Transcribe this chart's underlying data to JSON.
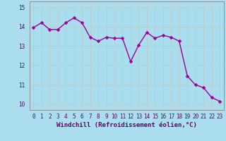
{
  "x": [
    0,
    1,
    2,
    3,
    4,
    5,
    6,
    7,
    8,
    9,
    10,
    11,
    12,
    13,
    14,
    15,
    16,
    17,
    18,
    19,
    20,
    21,
    22,
    23
  ],
  "y": [
    13.95,
    14.2,
    13.85,
    13.85,
    14.2,
    14.45,
    14.2,
    13.45,
    13.25,
    13.45,
    13.4,
    13.4,
    12.2,
    13.05,
    13.7,
    13.4,
    13.55,
    13.45,
    13.25,
    11.45,
    11.0,
    10.85,
    10.35,
    10.15
  ],
  "line_color": "#990099",
  "marker_color": "#990099",
  "bg_color": "#aaddee",
  "grid_color": "#bbcccc",
  "xlabel": "Windchill (Refroidissement éolien,°C)",
  "xlim": [
    -0.5,
    23.5
  ],
  "ylim": [
    9.7,
    15.3
  ],
  "yticks": [
    10,
    11,
    12,
    13,
    14,
    15
  ],
  "xticks": [
    0,
    1,
    2,
    3,
    4,
    5,
    6,
    7,
    8,
    9,
    10,
    11,
    12,
    13,
    14,
    15,
    16,
    17,
    18,
    19,
    20,
    21,
    22,
    23
  ],
  "label_fontsize": 6.5,
  "tick_fontsize": 5.5,
  "line_width": 1.0,
  "marker_size": 2.5
}
